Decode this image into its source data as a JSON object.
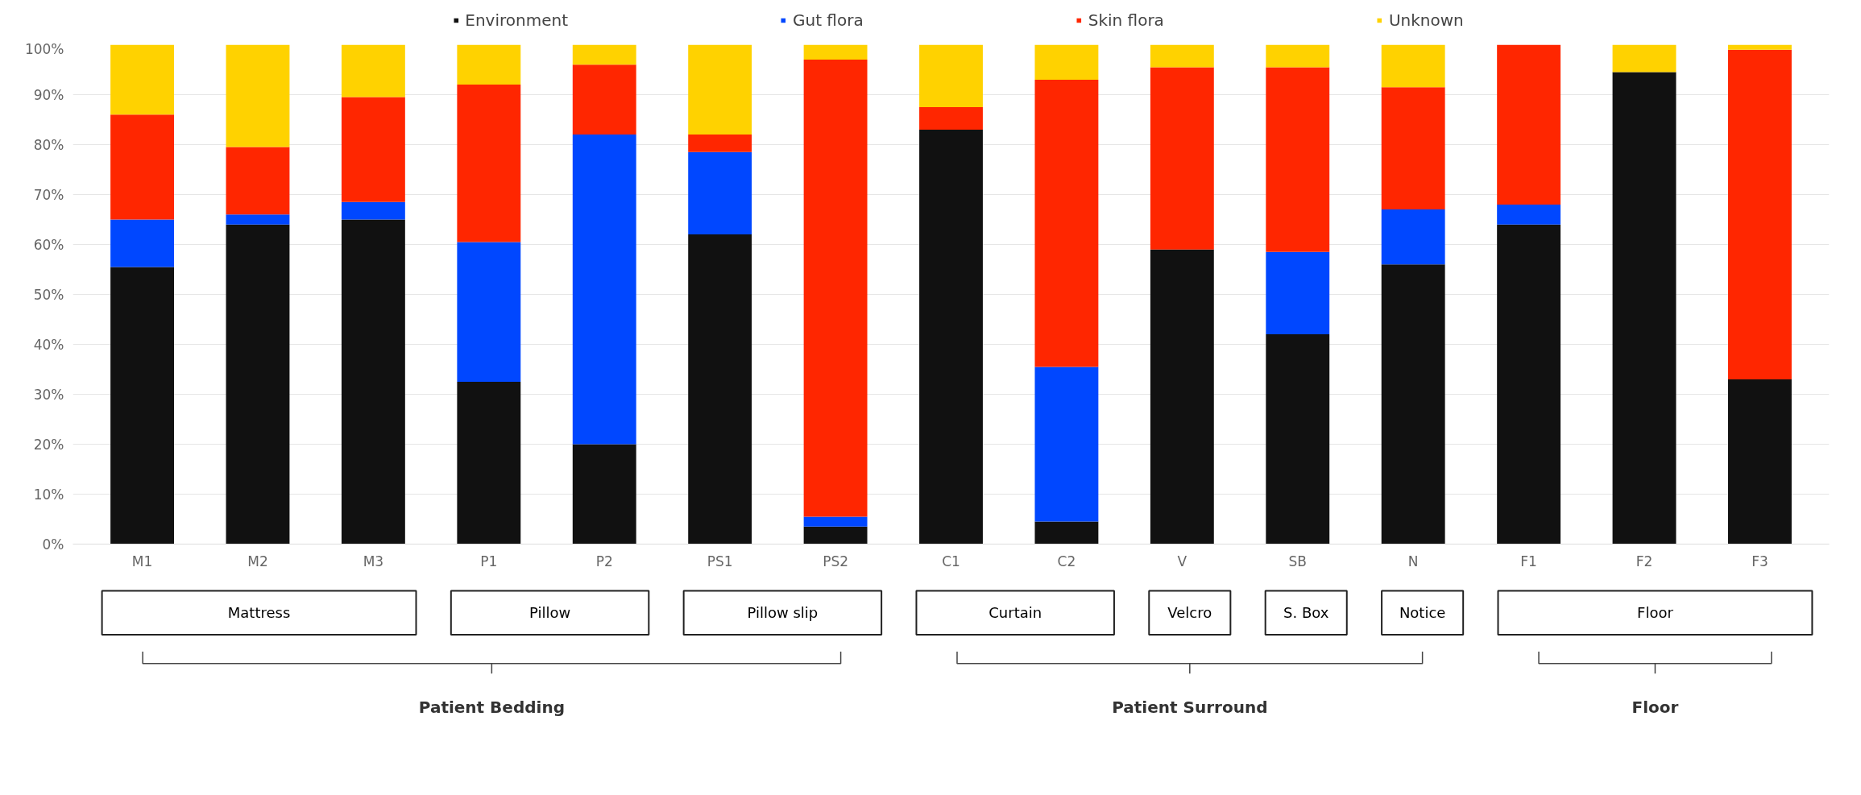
{
  "chart_data": {
    "type": "bar",
    "stacked": true,
    "categories": [
      "M1",
      "M2",
      "M3",
      "P1",
      "P2",
      "PS1",
      "PS2",
      "C1",
      "C2",
      "V",
      "SB",
      "N",
      "F1",
      "F2",
      "F3"
    ],
    "series": [
      {
        "name": "Environment",
        "color": "#111111",
        "values": [
          55.5,
          64,
          65,
          32.5,
          20,
          62,
          3.5,
          83,
          4.5,
          59,
          42,
          56,
          64,
          94.5,
          33
        ]
      },
      {
        "name": "Gut flora",
        "color": "#0047ff",
        "values": [
          9.5,
          2,
          3.5,
          28,
          62,
          16.5,
          2,
          0,
          31,
          0,
          16.5,
          11,
          4,
          0,
          0
        ]
      },
      {
        "name": "Skin flora",
        "color": "#ff2600",
        "values": [
          21,
          13.5,
          21,
          31.5,
          14,
          3.5,
          91.5,
          4.5,
          57.5,
          36.5,
          37,
          24.5,
          32,
          0,
          66
        ]
      },
      {
        "name": "Unknown",
        "color": "#ffd200",
        "values": [
          14,
          20.5,
          10.5,
          8,
          4,
          18,
          3,
          12.5,
          7,
          4.5,
          4.5,
          8.5,
          0,
          5.5,
          1
        ]
      }
    ],
    "ylim": [
      0,
      100
    ],
    "yticks": [
      {
        "value": 0,
        "label": "0%"
      },
      {
        "value": 10,
        "label": "10%"
      },
      {
        "value": 20,
        "label": "20%"
      },
      {
        "value": 30,
        "label": "30%"
      },
      {
        "value": 40,
        "label": "40%"
      },
      {
        "value": 50,
        "label": "50%"
      },
      {
        "value": 60,
        "label": "60%"
      },
      {
        "value": 70,
        "label": "70%"
      },
      {
        "value": 80,
        "label": "80%"
      },
      {
        "value": 90,
        "label": "90%"
      },
      {
        "value": 100,
        "label": "100%"
      }
    ],
    "grid": "y",
    "legend": "top",
    "annotations": [
      "Mattress",
      "Pillow",
      "Pillow slip",
      "Curtain",
      "Velcro",
      "S. Box",
      "Notice",
      "Floor",
      "Patient Bedding",
      "Patient Surround",
      "Floor"
    ]
  }
}
